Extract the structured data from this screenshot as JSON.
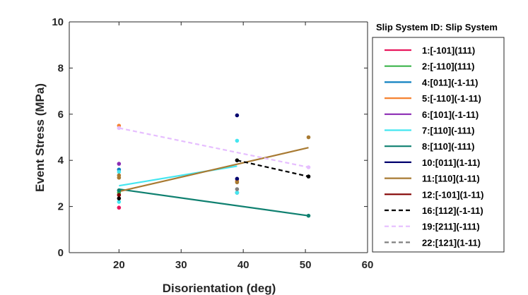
{
  "chart_data": {
    "type": "scatter",
    "title": "",
    "xlabel": "Disorientation (deg)",
    "ylabel": "Event Stress (MPa)",
    "xlim": [
      12,
      60
    ],
    "ylim": [
      0,
      10
    ],
    "xticks": [
      20,
      30,
      40,
      50,
      60
    ],
    "yticks": [
      0,
      2,
      4,
      6,
      8,
      10
    ],
    "grid": false,
    "legend_title": "Slip System ID: Slip System",
    "legend_position": "outside-right",
    "series": [
      {
        "name": "1:[-101](111)",
        "color": "#e8175d",
        "dash": "solid",
        "points": [
          [
            20,
            1.95
          ]
        ],
        "line": null
      },
      {
        "name": "2:[-110](111)",
        "color": "#3cb44b",
        "dash": "solid",
        "points": [
          [
            20,
            2.6
          ],
          [
            39,
            2.6
          ]
        ],
        "line": null
      },
      {
        "name": "4:[011](-1-11)",
        "color": "#0f80c0",
        "dash": "solid",
        "points": [
          [
            20,
            3.6
          ],
          [
            39,
            2.6
          ]
        ],
        "line": null
      },
      {
        "name": "5:[-110](-1-11)",
        "color": "#f58231",
        "dash": "solid",
        "points": [
          [
            20,
            5.5
          ],
          [
            39,
            3.1
          ]
        ],
        "line": null
      },
      {
        "name": "6:[101](-1-11)",
        "color": "#8c2cb4",
        "dash": "solid",
        "points": [
          [
            20,
            3.85
          ]
        ],
        "line": null
      },
      {
        "name": "7:[110](-111)",
        "color": "#45e6f0",
        "dash": "solid",
        "points": [
          [
            20,
            2.2
          ],
          [
            20,
            3.5
          ],
          [
            39,
            4.85
          ],
          [
            39,
            2.6
          ]
        ],
        "line": [
          [
            20,
            2.9
          ],
          [
            39,
            3.75
          ]
        ]
      },
      {
        "name": "8:[110](-111)",
        "color": "#0f8070",
        "dash": "solid",
        "points": [
          [
            20,
            2.7
          ],
          [
            50.5,
            1.6
          ]
        ],
        "line": [
          [
            20,
            2.75
          ],
          [
            50.5,
            1.6
          ]
        ]
      },
      {
        "name": "10:[011](1-11)",
        "color": "#00006e",
        "dash": "solid",
        "points": [
          [
            39,
            5.95
          ],
          [
            39,
            3.2
          ]
        ],
        "line": null
      },
      {
        "name": "11:[110](1-11)",
        "color": "#a87a32",
        "dash": "solid",
        "points": [
          [
            20,
            3.35
          ],
          [
            20,
            3.25
          ],
          [
            39,
            3.05
          ],
          [
            50.5,
            5.0
          ]
        ],
        "line": [
          [
            20,
            2.65
          ],
          [
            50.5,
            4.55
          ]
        ]
      },
      {
        "name": "12:[-101](1-11)",
        "color": "#820000",
        "dash": "solid",
        "points": [
          [
            20,
            2.5
          ]
        ],
        "line": null
      },
      {
        "name": "16:[112](-1-11)",
        "color": "#000000",
        "dash": "dash",
        "points": [
          [
            20,
            2.35
          ],
          [
            39,
            4.0
          ],
          [
            50.5,
            3.3
          ]
        ],
        "line": [
          [
            39,
            4.0
          ],
          [
            50.5,
            3.3
          ]
        ]
      },
      {
        "name": "19:[211](-111)",
        "color": "#e6beff",
        "dash": "dash",
        "points": [
          [
            20,
            5.4
          ],
          [
            50.5,
            3.7
          ]
        ],
        "line": [
          [
            20,
            5.4
          ],
          [
            50.5,
            3.7
          ]
        ]
      },
      {
        "name": "22:[121](1-11)",
        "color": "#808080",
        "dash": "dash",
        "points": [
          [
            39,
            2.75
          ]
        ],
        "line": null
      }
    ]
  }
}
